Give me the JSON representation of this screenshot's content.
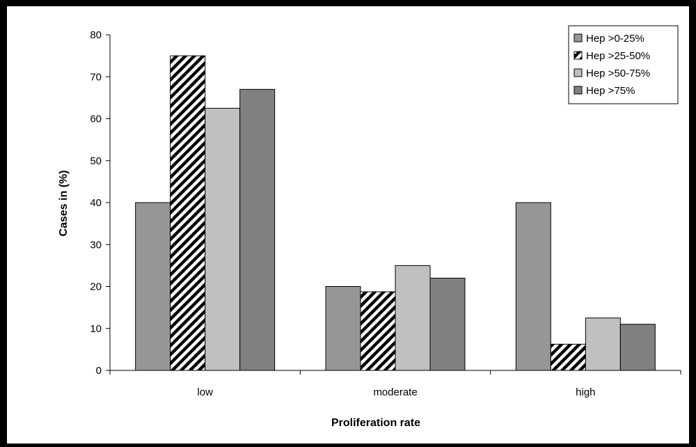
{
  "chart_data": {
    "type": "bar",
    "categories": [
      "low",
      "moderate",
      "high"
    ],
    "series": [
      {
        "name": "Hep >0-25%",
        "values": [
          40,
          20,
          40
        ],
        "color": "#969696",
        "pattern": "solid"
      },
      {
        "name": "Hep >25-50%",
        "values": [
          75,
          18.75,
          6.25
        ],
        "color": "#ffffff",
        "pattern": "diagonal-hatch"
      },
      {
        "name": "Hep >50-75%",
        "values": [
          62.5,
          25,
          12.5
        ],
        "color": "#c0c0c0",
        "pattern": "solid"
      },
      {
        "name": "Hep >75%",
        "values": [
          67,
          22,
          11
        ],
        "color": "#808080",
        "pattern": "solid"
      }
    ],
    "xlabel": "Proliferation rate",
    "ylabel": "Cases in (%)",
    "ylim": [
      0,
      80
    ],
    "yticks": [
      0,
      10,
      20,
      30,
      40,
      50,
      60,
      70,
      80
    ],
    "grid": false,
    "legend_position": "top-right"
  }
}
